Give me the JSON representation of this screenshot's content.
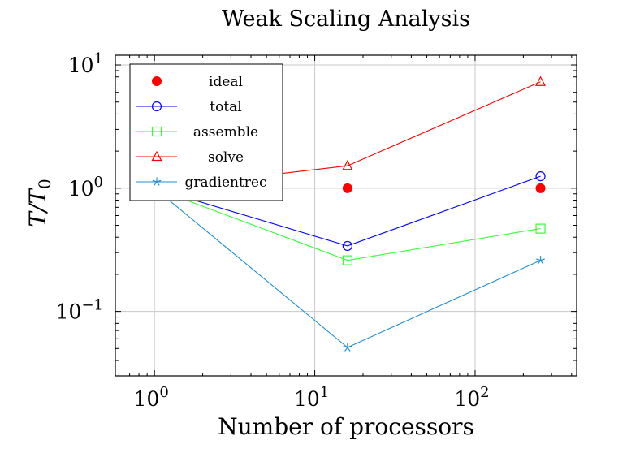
{
  "chart_data": {
    "type": "line",
    "title": "Weak Scaling Analysis",
    "xlabel": "Number of processors",
    "ylabel": "T/T0",
    "xscale": "log",
    "yscale": "log",
    "xlim": [
      0.57,
      430
    ],
    "ylim": [
      0.03,
      12
    ],
    "grid": true,
    "legend_position": "top-left",
    "x_ticks": [
      {
        "value": 1,
        "base": "10",
        "exp": "0"
      },
      {
        "value": 10,
        "base": "10",
        "exp": "1"
      },
      {
        "value": 100,
        "base": "10",
        "exp": "2"
      }
    ],
    "y_ticks": [
      {
        "value": 0.1,
        "base": "10",
        "exp": "−1"
      },
      {
        "value": 1,
        "base": "10",
        "exp": "0"
      },
      {
        "value": 10,
        "base": "10",
        "exp": "1"
      }
    ],
    "x": [
      1,
      16,
      256
    ],
    "series": [
      {
        "name": "ideal",
        "color": "#ff0000",
        "marker": "filled-circle",
        "line": false,
        "values": [
          1,
          1,
          1
        ]
      },
      {
        "name": "total",
        "color": "#0000ff",
        "marker": "circle",
        "line": true,
        "values": [
          1,
          0.34,
          1.25
        ]
      },
      {
        "name": "assemble",
        "color": "#33ff33",
        "marker": "square",
        "line": true,
        "values": [
          1,
          0.26,
          0.47
        ]
      },
      {
        "name": "solve",
        "color": "#ff0000",
        "marker": "triangle",
        "line": true,
        "values": [
          1,
          1.52,
          7.3
        ]
      },
      {
        "name": "gradientrec",
        "color": "#1f8fd6",
        "marker": "star",
        "line": true,
        "values": [
          1,
          0.051,
          0.26
        ]
      }
    ]
  }
}
